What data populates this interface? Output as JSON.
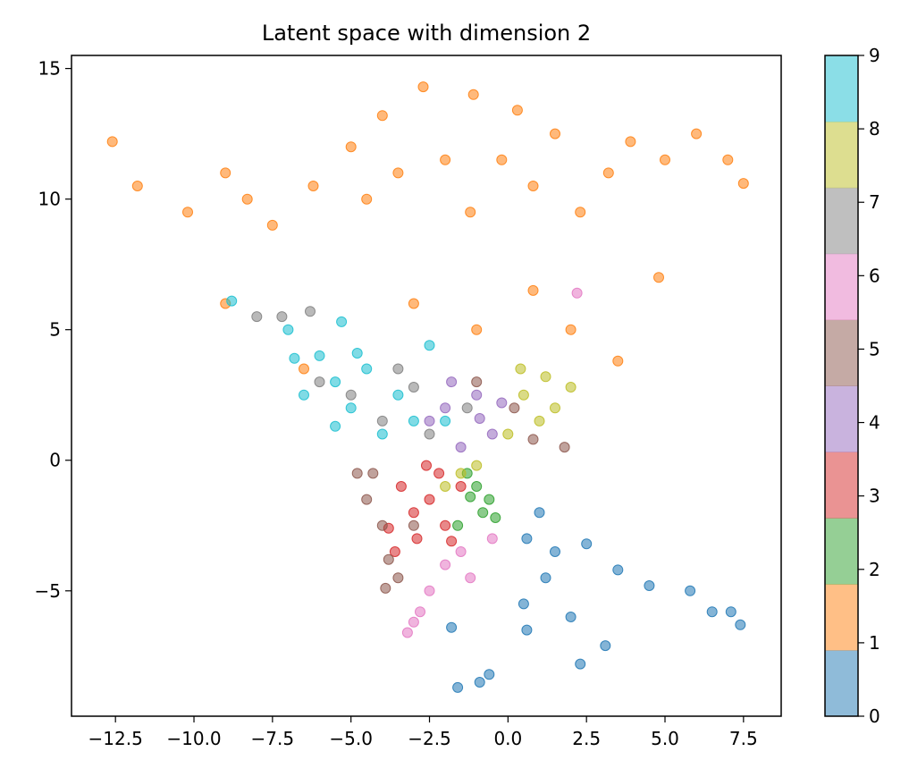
{
  "chart_data": {
    "type": "scatter",
    "title": "Latent space with dimension 2",
    "xlabel": "",
    "ylabel": "",
    "xlim": [
      -13.9,
      8.7
    ],
    "ylim": [
      -9.8,
      15.5
    ],
    "xticks": [
      -12.5,
      -10.0,
      -7.5,
      -5.0,
      -2.5,
      0.0,
      2.5,
      5.0,
      7.5
    ],
    "xtick_labels": [
      "−12.5",
      "−10.0",
      "−7.5",
      "−5.0",
      "−2.5",
      "0.0",
      "2.5",
      "5.0",
      "7.5"
    ],
    "yticks": [
      -5,
      0,
      5,
      10,
      15
    ],
    "ytick_labels": [
      "−5",
      "0",
      "5",
      "10",
      "15"
    ],
    "grid": false,
    "legend": "none",
    "colorbar": {
      "range": [
        0,
        9
      ],
      "ticks": [
        0,
        1,
        2,
        3,
        4,
        5,
        6,
        7,
        8,
        9
      ],
      "tick_labels": [
        "0",
        "1",
        "2",
        "3",
        "4",
        "5",
        "6",
        "7",
        "8",
        "9"
      ],
      "colors": [
        "#1f77b4",
        "#ff7f0e",
        "#2ca02c",
        "#d62728",
        "#9467bd",
        "#8c564b",
        "#e377c2",
        "#7f7f7f",
        "#bcbd22",
        "#17becf"
      ]
    },
    "series": [
      {
        "values": [
          [
            1.5,
            -3.5
          ],
          [
            2.5,
            -3.2
          ],
          [
            1.2,
            -4.5
          ],
          [
            3.5,
            -4.2
          ],
          [
            0.5,
            -5.5
          ],
          [
            2.0,
            -6.0
          ],
          [
            4.5,
            -4.8
          ],
          [
            5.8,
            -5.0
          ],
          [
            6.5,
            -5.8
          ],
          [
            7.4,
            -6.3
          ],
          [
            7.1,
            -5.8
          ],
          [
            -1.6,
            -8.7
          ],
          [
            -0.9,
            -8.5
          ],
          [
            0.6,
            -6.5
          ],
          [
            -1.8,
            -6.4
          ],
          [
            2.3,
            -7.8
          ],
          [
            3.1,
            -7.1
          ],
          [
            -0.6,
            -8.2
          ],
          [
            1.0,
            -2.0
          ],
          [
            0.6,
            -3.0
          ]
        ]
      },
      {
        "values": [
          [
            -12.6,
            12.2
          ],
          [
            -11.8,
            10.5
          ],
          [
            -10.2,
            9.5
          ],
          [
            -9.0,
            11.0
          ],
          [
            -8.3,
            10.0
          ],
          [
            -7.5,
            9.0
          ],
          [
            -6.2,
            10.5
          ],
          [
            -5.0,
            12.0
          ],
          [
            -4.5,
            10.0
          ],
          [
            -3.5,
            11.0
          ],
          [
            -2.7,
            14.3
          ],
          [
            -2.0,
            11.5
          ],
          [
            -1.2,
            9.5
          ],
          [
            -0.2,
            11.5
          ],
          [
            0.8,
            10.5
          ],
          [
            1.5,
            12.5
          ],
          [
            2.3,
            9.5
          ],
          [
            3.2,
            11.0
          ],
          [
            3.9,
            12.2
          ],
          [
            5.0,
            11.5
          ],
          [
            6.0,
            12.5
          ],
          [
            7.0,
            11.5
          ],
          [
            7.5,
            10.6
          ],
          [
            -9.0,
            6.0
          ],
          [
            -6.5,
            3.5
          ],
          [
            -3.0,
            6.0
          ],
          [
            -1.0,
            5.0
          ],
          [
            0.8,
            6.5
          ],
          [
            2.0,
            5.0
          ],
          [
            3.5,
            3.8
          ],
          [
            4.8,
            7.0
          ],
          [
            -4.0,
            13.2
          ],
          [
            -1.1,
            14.0
          ],
          [
            0.3,
            13.4
          ]
        ]
      },
      {
        "values": [
          [
            -1.2,
            -1.4
          ],
          [
            -0.8,
            -2.0
          ],
          [
            -1.6,
            -2.5
          ],
          [
            -1.0,
            -1.0
          ],
          [
            -0.4,
            -2.2
          ],
          [
            -1.3,
            -0.5
          ],
          [
            -0.6,
            -1.5
          ]
        ]
      },
      {
        "values": [
          [
            -3.0,
            -2.0
          ],
          [
            -2.5,
            -1.5
          ],
          [
            -2.0,
            -2.5
          ],
          [
            -3.4,
            -1.0
          ],
          [
            -2.9,
            -3.0
          ],
          [
            -1.5,
            -1.0
          ],
          [
            -2.2,
            -0.5
          ],
          [
            -3.8,
            -2.6
          ],
          [
            -1.8,
            -3.1
          ],
          [
            -2.6,
            -0.2
          ],
          [
            -3.6,
            -3.5
          ]
        ]
      },
      {
        "values": [
          [
            -2.0,
            2.0
          ],
          [
            -1.0,
            2.5
          ],
          [
            -0.5,
            1.0
          ],
          [
            -1.5,
            0.5
          ],
          [
            -2.5,
            1.5
          ],
          [
            -0.2,
            2.2
          ],
          [
            -1.8,
            3.0
          ],
          [
            -0.9,
            1.6
          ]
        ]
      },
      {
        "values": [
          [
            -4.5,
            -1.5
          ],
          [
            -3.8,
            -3.8
          ],
          [
            -4.0,
            -2.5
          ],
          [
            -3.5,
            -4.5
          ],
          [
            -3.0,
            -2.5
          ],
          [
            -4.3,
            -0.5
          ],
          [
            -1.0,
            3.0
          ],
          [
            0.2,
            2.0
          ],
          [
            0.8,
            0.8
          ],
          [
            1.8,
            0.5
          ],
          [
            -3.9,
            -4.9
          ],
          [
            -4.8,
            -0.5
          ]
        ]
      },
      {
        "values": [
          [
            -2.0,
            -4.0
          ],
          [
            -2.5,
            -5.0
          ],
          [
            -3.2,
            -6.6
          ],
          [
            -1.5,
            -3.5
          ],
          [
            -0.5,
            -3.0
          ],
          [
            -2.8,
            -5.8
          ],
          [
            -1.2,
            -4.5
          ],
          [
            -3.0,
            -6.2
          ],
          [
            2.2,
            6.4
          ]
        ]
      },
      {
        "values": [
          [
            -6.0,
            3.0
          ],
          [
            -5.0,
            2.5
          ],
          [
            -4.0,
            1.5
          ],
          [
            -3.0,
            2.8
          ],
          [
            -2.5,
            1.0
          ],
          [
            -3.5,
            3.5
          ],
          [
            -6.3,
            5.7
          ],
          [
            -7.2,
            5.5
          ],
          [
            -8.0,
            5.5
          ],
          [
            -1.3,
            2.0
          ]
        ]
      },
      {
        "values": [
          [
            0.5,
            2.5
          ],
          [
            1.0,
            1.5
          ],
          [
            1.5,
            2.0
          ],
          [
            2.0,
            2.8
          ],
          [
            0.0,
            1.0
          ],
          [
            -1.5,
            -0.5
          ],
          [
            -2.0,
            -1.0
          ],
          [
            1.2,
            3.2
          ],
          [
            0.4,
            3.5
          ],
          [
            -1.0,
            -0.2
          ]
        ]
      },
      {
        "values": [
          [
            -8.8,
            6.1
          ],
          [
            -7.0,
            5.0
          ],
          [
            -6.0,
            4.0
          ],
          [
            -5.5,
            3.0
          ],
          [
            -5.0,
            2.0
          ],
          [
            -4.5,
            3.5
          ],
          [
            -3.5,
            2.5
          ],
          [
            -2.5,
            4.4
          ],
          [
            -4.0,
            1.0
          ],
          [
            -5.5,
            1.3
          ],
          [
            -6.5,
            2.5
          ],
          [
            -3.0,
            1.5
          ],
          [
            -2.0,
            1.5
          ],
          [
            -4.8,
            4.1
          ],
          [
            -5.3,
            5.3
          ],
          [
            -6.8,
            3.9
          ]
        ]
      }
    ]
  }
}
